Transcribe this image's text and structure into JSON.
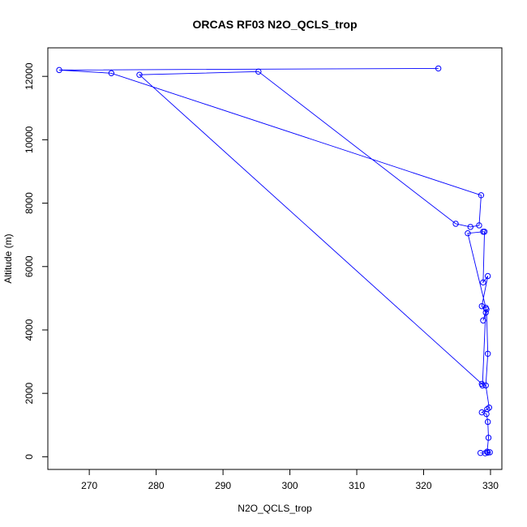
{
  "chart_data": {
    "type": "line",
    "title": "ORCAS RF03 N2O_QCLS_trop",
    "xlabel": "N2O_QCLS_trop",
    "ylabel": "Altitude (m)",
    "xlim": [
      263.8,
      331.7
    ],
    "ylim": [
      -400,
      12900
    ],
    "xticks": [
      270,
      280,
      290,
      300,
      310,
      320,
      330
    ],
    "yticks": [
      0,
      2000,
      4000,
      6000,
      8000,
      10000,
      12000
    ],
    "grid": false,
    "legend": "none",
    "series": [
      {
        "color": "#0000FF",
        "marker": "open-circle",
        "points": [
          [
            328.5,
            120
          ],
          [
            329.2,
            110
          ],
          [
            329.6,
            130
          ],
          [
            329.9,
            140
          ],
          [
            329.5,
            160
          ],
          [
            329.7,
            600
          ],
          [
            329.6,
            1100
          ],
          [
            329.4,
            1350
          ],
          [
            328.7,
            1400
          ],
          [
            329.5,
            1500
          ],
          [
            329.8,
            1550
          ],
          [
            329.3,
            2250
          ],
          [
            329.6,
            3250
          ],
          [
            329.4,
            4650
          ],
          [
            328.9,
            4300
          ],
          [
            329.3,
            4550
          ],
          [
            328.7,
            4750
          ],
          [
            329.6,
            5700
          ],
          [
            328.9,
            5500
          ],
          [
            329.1,
            7100
          ],
          [
            328.9,
            7100
          ],
          [
            326.6,
            7050
          ],
          [
            329.3,
            4700
          ],
          [
            328.8,
            2250
          ],
          [
            328.7,
            2300
          ],
          [
            277.5,
            12050
          ],
          [
            295.3,
            12150
          ],
          [
            324.8,
            7350
          ],
          [
            327.0,
            7250
          ],
          [
            328.3,
            7300
          ],
          [
            328.6,
            8250
          ],
          [
            273.3,
            12100
          ],
          [
            265.5,
            12200
          ],
          [
            322.2,
            12250
          ]
        ]
      }
    ]
  }
}
